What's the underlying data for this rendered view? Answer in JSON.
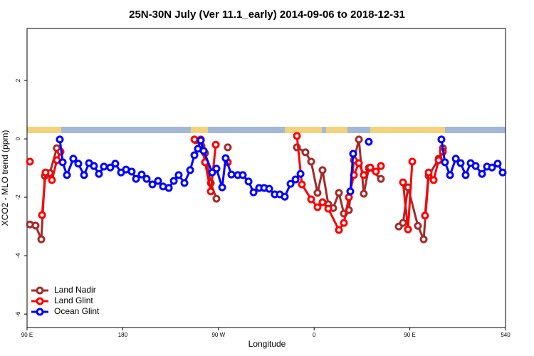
{
  "chart_data": {
    "type": "line",
    "title": "25N-30N July (Ver 11.1_early)   2014-09-06 to 2018-12-31",
    "x_label": "Longitude",
    "y_label": "XCO2 - MLO trend (ppm)",
    "xlim": [
      90,
      540
    ],
    "ylim": [
      -6.46,
      3.78
    ],
    "xticks": [
      {
        "value": 90,
        "label": "90 E"
      },
      180,
      {
        "value": 270,
        "label": "90 W"
      },
      {
        "value": 360,
        "label": "0"
      },
      {
        "value": 450,
        "label": "90 E"
      },
      540
    ],
    "yticks": [
      -6,
      -4,
      -2,
      0,
      2
    ],
    "legend": "bottom-left",
    "series": [
      {
        "name": "Land Nadir",
        "color": "#a52a2a",
        "x": [
          92.7,
          98,
          103.4,
          106.7,
          111.4,
          118,
          null,
          248.7,
          254,
          257.4,
          262.8,
          268.1,
          null,
          278.8,
          null,
          343.8,
          351.8,
          357.2,
          363.2,
          367.9,
          373.3,
          377.9,
          383.3,
          388,
          392.7,
          397.4,
          402.1,
          406.7,
          411.4,
          422.8,
          null,
          439.6,
          443.6,
          448.3,
          457.6,
          463,
          467.7,
          477.1,
          481.1
        ],
        "values": [
          -2.93,
          -2.97,
          -3.44,
          -1.27,
          -1.17,
          -0.32,
          null,
          -0.05,
          -0.24,
          -0.49,
          -1.51,
          -2.05,
          null,
          -0.29,
          null,
          -0.29,
          -0.46,
          -0.78,
          -1.85,
          -1.07,
          -2.24,
          -2.37,
          -1.85,
          -2.56,
          -2.44,
          -0.73,
          -0.02,
          -1.88,
          -1.0,
          -1.37,
          null,
          -3.0,
          -2.88,
          -1.66,
          -2.98,
          -3.44,
          -1.27,
          -0.68,
          -0.32
        ]
      },
      {
        "name": "Land Glint",
        "color": "#ff0000",
        "x": [
          92.7,
          null,
          104.1,
          107.4,
          113.4,
          118.1,
          121.5,
          null,
          247.4,
          253.4,
          257.4,
          262.8,
          267.5,
          null,
          278.8,
          null,
          343.8,
          348.5,
          357.2,
          363.2,
          367.9,
          373.3,
          383.3,
          388,
          392.7,
          397.4,
          402.1,
          406.7,
          412.8,
          418.1,
          422.8,
          null,
          443.6,
          448.3,
          452.3,
          null,
          464.3,
          467.7,
          472.4,
          477.1,
          481.1
        ],
        "values": [
          -0.78,
          null,
          -2.61,
          -1.15,
          -1.41,
          -0.73,
          -0.44,
          null,
          -0.02,
          -0.02,
          -0.8,
          -1.8,
          -0.2,
          null,
          -0.8,
          null,
          0.1,
          -1.56,
          -2.07,
          -2.34,
          -2.17,
          -2.39,
          -3.12,
          -2.88,
          -2.0,
          -1.24,
          -0.83,
          -1.24,
          -0.98,
          -1.12,
          -0.93,
          null,
          -1.49,
          -3.1,
          -0.78,
          null,
          -2.63,
          -1.15,
          -1.41,
          -0.73,
          -0.44
        ]
      },
      {
        "name": "Ocean Glint",
        "color": "#0000ff",
        "x": [
          120.8,
          123.5,
          127.5,
          133.5,
          138.2,
          143.6,
          148.3,
          152.9,
          157.6,
          162.3,
          168.3,
          173,
          178.4,
          183.1,
          188.4,
          192.5,
          197.8,
          202.5,
          207.9,
          213.2,
          217.9,
          223.3,
          228,
          232.6,
          238,
          243.4,
          247.4,
          250.7,
          253.4,
          256.1,
          264.1,
          268.1,
          273.5,
          276.8,
          282.2,
          288.2,
          292.9,
          298.3,
          303,
          308.3,
          313,
          317.7,
          323,
          327.7,
          332.4,
          337.8,
          342.5,
          347.2,
          null,
          394,
          396.7,
          null,
          411.4,
          null,
          479.7,
          483,
          487.8,
          493.2,
          497.8,
          502.5,
          507.2,
          511.9,
          517.9,
          522.6,
          527.3,
          532.6,
          537.3
        ],
        "values": [
          -0.02,
          -0.8,
          -1.24,
          -0.68,
          -0.85,
          -1.24,
          -0.83,
          -0.93,
          -1.2,
          -0.95,
          -0.98,
          -0.85,
          -1.15,
          -1.05,
          -1.12,
          -1.37,
          -1.22,
          -1.37,
          -1.56,
          -1.44,
          -1.63,
          -1.68,
          -1.44,
          -1.24,
          -1.51,
          -1.07,
          -0.56,
          -0.34,
          -0.05,
          -0.41,
          -1.15,
          -1.02,
          -1.66,
          -0.66,
          -1.22,
          -1.24,
          -1.24,
          -1.46,
          -1.83,
          -1.68,
          -1.68,
          -1.71,
          -1.9,
          -1.9,
          -1.98,
          -1.54,
          -1.39,
          -1.2,
          null,
          -1.8,
          -0.51,
          null,
          -0.1,
          null,
          -0.02,
          -0.8,
          -1.24,
          -0.68,
          -0.83,
          -1.24,
          -0.83,
          -0.93,
          -1.2,
          -0.95,
          -0.98,
          -0.85,
          -1.15
        ]
      }
    ]
  }
}
